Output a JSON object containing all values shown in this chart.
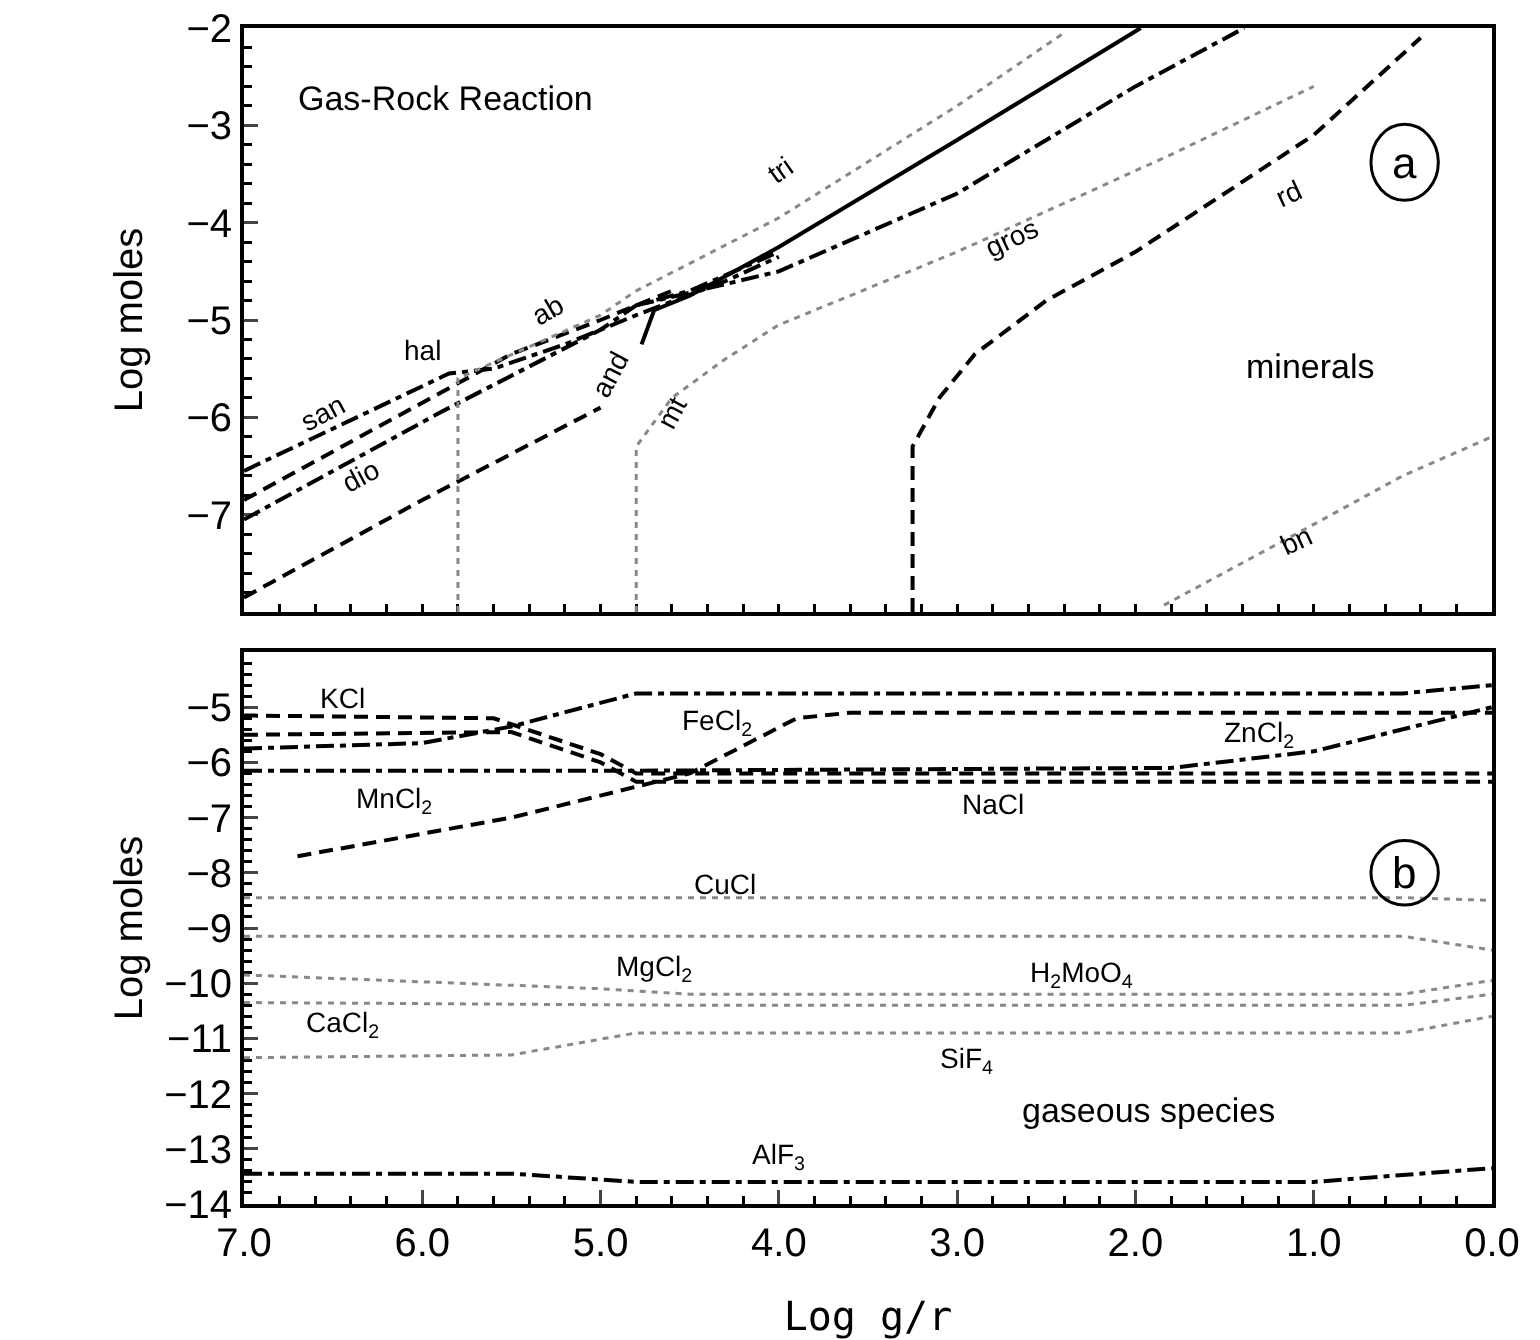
{
  "chart_data": [
    {
      "type": "line",
      "ylabel": "Log moles",
      "xlim": [
        7,
        0
      ],
      "ylim": [
        -8,
        -2
      ],
      "xticks": [
        {
          "value": 7,
          "label": null
        },
        {
          "value": 6,
          "label": null
        },
        {
          "value": 5,
          "label": null
        },
        {
          "value": 4,
          "label": null
        },
        {
          "value": 3,
          "label": null
        },
        {
          "value": 2,
          "label": null
        },
        {
          "value": 1,
          "label": null
        },
        {
          "value": 0,
          "label": null
        }
      ],
      "yticks": [
        -2,
        -3,
        -4,
        -5,
        -6,
        -7
      ],
      "tick_labels": "y",
      "series": [
        {
          "color": "#000000",
          "line_style": "dashdot",
          "x": [
            7,
            5.85,
            5.6,
            5.2,
            4.8,
            4.3,
            4.0
          ],
          "values": [
            -6.55,
            -5.55,
            -5.5,
            -5.25,
            -4.95,
            -4.6,
            -4.35
          ]
        },
        {
          "color": "#000000",
          "line_style": "dashed",
          "x": [
            7,
            5.9,
            5.5,
            5.0,
            4.6
          ],
          "values": [
            -6.85,
            -5.75,
            -5.35,
            -5.0,
            -4.7
          ]
        },
        {
          "color": "#000000",
          "line_style": "dashdot",
          "x": [
            7,
            5.9,
            5.0,
            4.8,
            4.5,
            4.0
          ],
          "values": [
            -7.05,
            -5.95,
            -5.1,
            -4.85,
            -4.7,
            -4.3
          ]
        },
        {
          "color": "#000000",
          "line_style": "dashed",
          "x": [
            7,
            6.0,
            5.0
          ],
          "values": [
            -7.85,
            -6.85,
            -5.9
          ]
        },
        {
          "color": "#888888",
          "line_style": "dotted",
          "x": [
            5.8,
            5.8,
            5.0,
            4.8,
            4.0,
            3.0,
            2.4
          ],
          "values": [
            -8,
            -5.6,
            -4.95,
            -4.7,
            -3.95,
            -2.8,
            -2.05
          ]
        },
        {
          "color": "#888888",
          "line_style": "dotted",
          "x": [
            4.8,
            4.8,
            4.6,
            4.3,
            4.0,
            3.0,
            1.8,
            1.0
          ],
          "values": [
            -8,
            -6.3,
            -5.8,
            -5.4,
            -5.05,
            -4.3,
            -3.3,
            -2.6
          ]
        },
        {
          "color": "#000000",
          "line_style": "solid",
          "x": [
            4.77,
            4.7,
            4.5,
            4.0,
            3.0,
            1.97
          ],
          "values": [
            -5.25,
            -4.9,
            -4.75,
            -4.25,
            -3.15,
            -2
          ]
        },
        {
          "color": "#000000",
          "line_style": "dashdot",
          "x": [
            4.8,
            4.0,
            3.0,
            2.0,
            1.39
          ],
          "values": [
            -4.85,
            -4.5,
            -3.7,
            -2.6,
            -2
          ]
        },
        {
          "color": "#000000",
          "line_style": "dashed",
          "x": [
            3.25,
            3.25,
            3.1,
            2.9,
            2.5,
            2.0,
            1.0,
            0.4
          ],
          "values": [
            -8,
            -6.3,
            -5.8,
            -5.35,
            -4.8,
            -4.3,
            -3.1,
            -2.1
          ]
        },
        {
          "color": "#888888",
          "line_style": "dotted",
          "x": [
            1.84,
            1.0,
            0.5,
            0
          ],
          "values": [
            -7.93,
            -7.1,
            -6.6,
            -6.2
          ]
        }
      ],
      "annotations": [
        "Gas-Rock Reaction",
        "minerals",
        "a",
        "hal",
        "san",
        "dio",
        "ab",
        "tri",
        "and",
        "mt",
        "gros",
        "rd",
        "bn"
      ]
    },
    {
      "type": "line",
      "xlabel": "Log g/r",
      "ylabel": "Log moles",
      "xlim": [
        7,
        0
      ],
      "ylim": [
        -14,
        -4
      ],
      "xticks": [
        {
          "value": 7,
          "label": "7.0"
        },
        {
          "value": 6,
          "label": "6.0"
        },
        {
          "value": 5,
          "label": "5.0"
        },
        {
          "value": 4,
          "label": "4.0"
        },
        {
          "value": 3,
          "label": "3.0"
        },
        {
          "value": 2,
          "label": "2.0"
        },
        {
          "value": 1,
          "label": "1.0"
        },
        {
          "value": 0,
          "label": "0.0"
        }
      ],
      "yticks": [
        -5,
        -6,
        -7,
        -8,
        -9,
        -10,
        -11,
        -12,
        -13,
        -14
      ],
      "series": [
        {
          "color": "#000000",
          "line_style": "dashdot",
          "x": [
            7,
            6,
            5.5,
            4.8,
            0.5,
            0
          ],
          "values": [
            -5.75,
            -5.65,
            -5.35,
            -4.75,
            -4.75,
            -4.6
          ]
        },
        {
          "color": "#000000",
          "line_style": "dashed",
          "x": [
            7,
            5.6,
            5.0,
            4.8,
            0
          ],
          "values": [
            -5.15,
            -5.2,
            -5.85,
            -6.2,
            -6.2
          ]
        },
        {
          "color": "#000000",
          "line_style": "dashed",
          "x": [
            7,
            5.5,
            5.0,
            4.8,
            0
          ],
          "values": [
            -5.5,
            -5.45,
            -6.0,
            -6.35,
            -6.35
          ]
        },
        {
          "color": "#000000",
          "line_style": "dashdot",
          "x": [
            7,
            4.8,
            1.8,
            1.0,
            0
          ],
          "values": [
            -6.15,
            -6.15,
            -6.1,
            -5.8,
            -5.0
          ]
        },
        {
          "color": "#000000",
          "line_style": "dashed",
          "x": [
            6.7,
            5.5,
            4.5,
            3.9,
            3.6,
            0
          ],
          "values": [
            -7.7,
            -7.0,
            -6.2,
            -5.2,
            -5.1,
            -5.1
          ]
        },
        {
          "color": "#888888",
          "line_style": "dotted",
          "x": [
            7,
            0.5,
            0
          ],
          "values": [
            -8.45,
            -8.45,
            -8.5
          ]
        },
        {
          "color": "#888888",
          "line_style": "dotted",
          "x": [
            7,
            0.5,
            0
          ],
          "values": [
            -9.15,
            -9.15,
            -9.4
          ]
        },
        {
          "color": "#888888",
          "line_style": "dotted",
          "x": [
            7,
            5.0,
            4.5,
            0.5,
            0
          ],
          "values": [
            -9.85,
            -10.1,
            -10.2,
            -10.2,
            -9.95
          ]
        },
        {
          "color": "#888888",
          "line_style": "dotted",
          "x": [
            7,
            4.5,
            0.5,
            0
          ],
          "values": [
            -10.35,
            -10.4,
            -10.4,
            -10.2
          ]
        },
        {
          "color": "#888888",
          "line_style": "dotted",
          "x": [
            7,
            5.5,
            4.8,
            0.5,
            0
          ],
          "values": [
            -11.35,
            -11.3,
            -10.9,
            -10.9,
            -10.6
          ]
        },
        {
          "color": "#000000",
          "line_style": "dashdot",
          "x": [
            7,
            5.5,
            4.8,
            1.0,
            0
          ],
          "values": [
            -13.45,
            -13.45,
            -13.6,
            -13.6,
            -13.35
          ]
        }
      ],
      "annotations": [
        "gaseous species",
        "b",
        "KCl",
        "FeCl$_{2}$",
        "ZnCl$_{2}$",
        "NaCl",
        "MnCl$_{2}$",
        "CuCl",
        "H$_{2}$MoO$_{4}$",
        "MgCl$_{2}$",
        "CaCl$_{2}$",
        "SiF$_{4}$",
        "AlF$_{3}$"
      ]
    }
  ]
}
